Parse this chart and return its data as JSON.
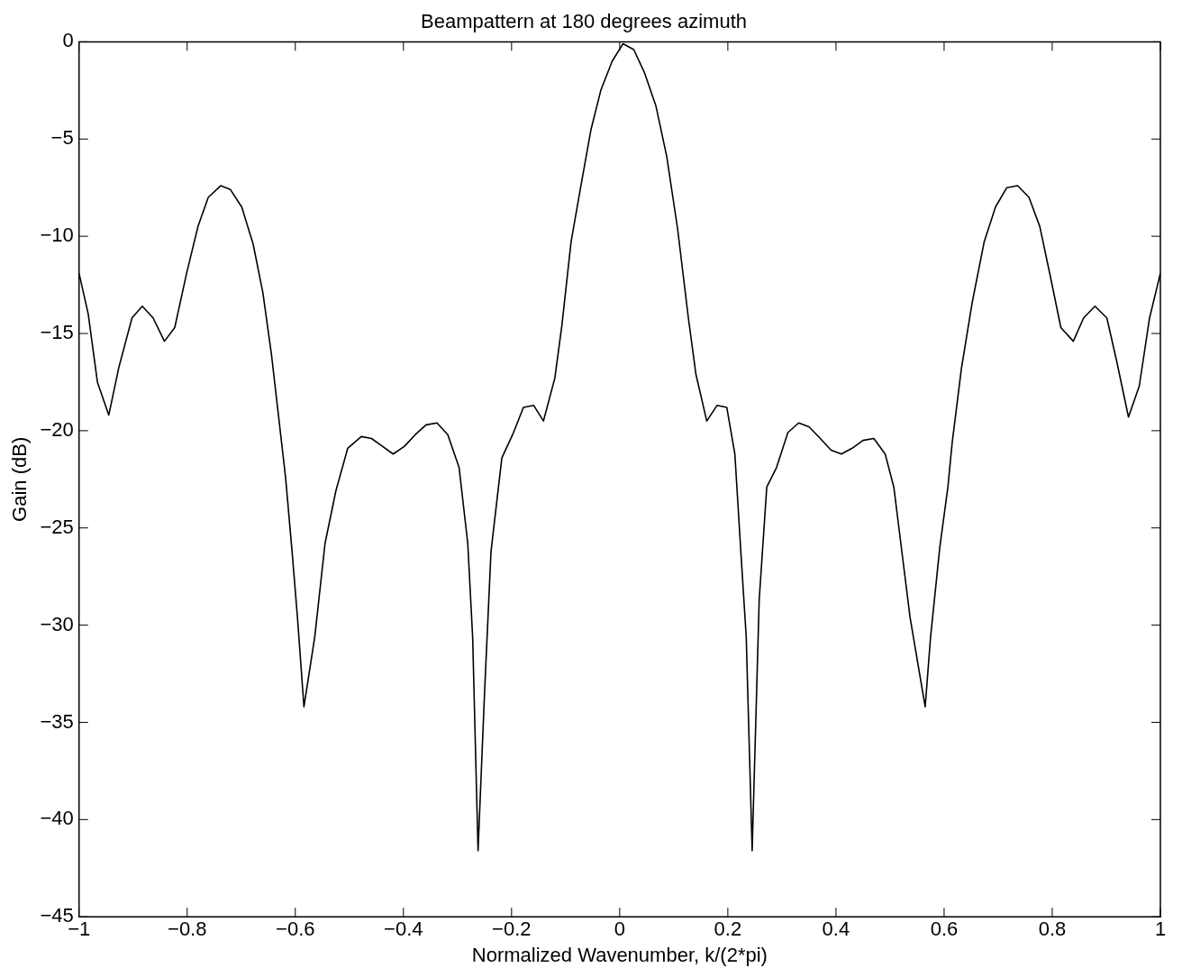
{
  "chart_data": {
    "type": "line",
    "title": "Beampattern at 180 degrees azimuth",
    "xlabel": "Normalized Wavenumber, k/(2*pi)",
    "ylabel": "Gain (dB)",
    "xlim": [
      -1,
      1
    ],
    "xticks": [
      -1,
      -0.8,
      -0.6,
      -0.4,
      -0.2,
      0,
      0.2,
      0.4,
      0.6,
      0.8,
      1
    ],
    "ylim": [
      -45,
      0
    ],
    "yticks": [
      -45,
      -40,
      -35,
      -30,
      -25,
      -20,
      -15,
      -10,
      -5,
      0
    ],
    "marker": "none",
    "line_style": "solid",
    "series": [
      {
        "color": "#000000",
        "x": [
          -1,
          -0.983,
          -0.966,
          -0.945,
          -0.926,
          -0.902,
          -0.883,
          -0.863,
          -0.842,
          -0.823,
          -0.801,
          -0.78,
          -0.761,
          -0.738,
          -0.72,
          -0.699,
          -0.678,
          -0.66,
          -0.644,
          -0.632,
          -0.618,
          -0.606,
          -0.596,
          -0.584,
          -0.564,
          -0.545,
          -0.525,
          -0.503,
          -0.478,
          -0.459,
          -0.439,
          -0.419,
          -0.398,
          -0.378,
          -0.358,
          -0.338,
          -0.318,
          -0.297,
          -0.281,
          -0.272,
          -0.262,
          -0.25,
          -0.238,
          -0.218,
          -0.198,
          -0.178,
          -0.159,
          -0.141,
          -0.12,
          -0.107,
          -0.09,
          -0.073,
          -0.053,
          -0.035,
          -0.014,
          0.006,
          0.026,
          0.046,
          0.067,
          0.087,
          0.107,
          0.127,
          0.141,
          0.161,
          0.18,
          0.198,
          0.213,
          0.224,
          0.234,
          0.245,
          0.258,
          0.272,
          0.29,
          0.311,
          0.331,
          0.35,
          0.371,
          0.391,
          0.41,
          0.43,
          0.45,
          0.47,
          0.491,
          0.507,
          0.52,
          0.537,
          0.565,
          0.575,
          0.592,
          0.607,
          0.615,
          0.632,
          0.652,
          0.674,
          0.695,
          0.716,
          0.736,
          0.757,
          0.777,
          0.796,
          0.816,
          0.839,
          0.858,
          0.879,
          0.901,
          0.919,
          0.941,
          0.961,
          0.98,
          1
        ],
        "values": [
          -11.9,
          -14,
          -17.5,
          -19.2,
          -16.7,
          -14.2,
          -13.6,
          -14.2,
          -15.4,
          -14.7,
          -11.9,
          -9.5,
          -8,
          -7.4,
          -7.6,
          -8.5,
          -10.4,
          -12.9,
          -16.1,
          -19,
          -22.4,
          -26.2,
          -29.6,
          -34.2,
          -30.6,
          -25.8,
          -23.1,
          -20.9,
          -20.3,
          -20.4,
          -20.8,
          -21.2,
          -20.8,
          -20.2,
          -19.7,
          -19.6,
          -20.2,
          -21.9,
          -25.8,
          -30.6,
          -41.6,
          -33.5,
          -26.2,
          -21.4,
          -20.2,
          -18.8,
          -18.7,
          -19.5,
          -17.3,
          -14.6,
          -10.3,
          -7.6,
          -4.5,
          -2.5,
          -1,
          -0.1,
          -0.4,
          -1.6,
          -3.3,
          -5.9,
          -9.6,
          -14.2,
          -17.1,
          -19.5,
          -18.7,
          -18.8,
          -21.2,
          -26.2,
          -30.6,
          -41.6,
          -28.7,
          -22.9,
          -21.9,
          -20.1,
          -19.6,
          -19.8,
          -20.4,
          -21,
          -21.2,
          -20.9,
          -20.5,
          -20.4,
          -21.2,
          -22.9,
          -25.8,
          -29.6,
          -34.2,
          -30.6,
          -26,
          -22.9,
          -20.6,
          -16.8,
          -13.4,
          -10.3,
          -8.5,
          -7.5,
          -7.4,
          -8,
          -9.5,
          -12,
          -14.7,
          -15.4,
          -14.2,
          -13.6,
          -14.2,
          -16.4,
          -19.3,
          -17.7,
          -14.2,
          -11.9
        ]
      }
    ]
  }
}
